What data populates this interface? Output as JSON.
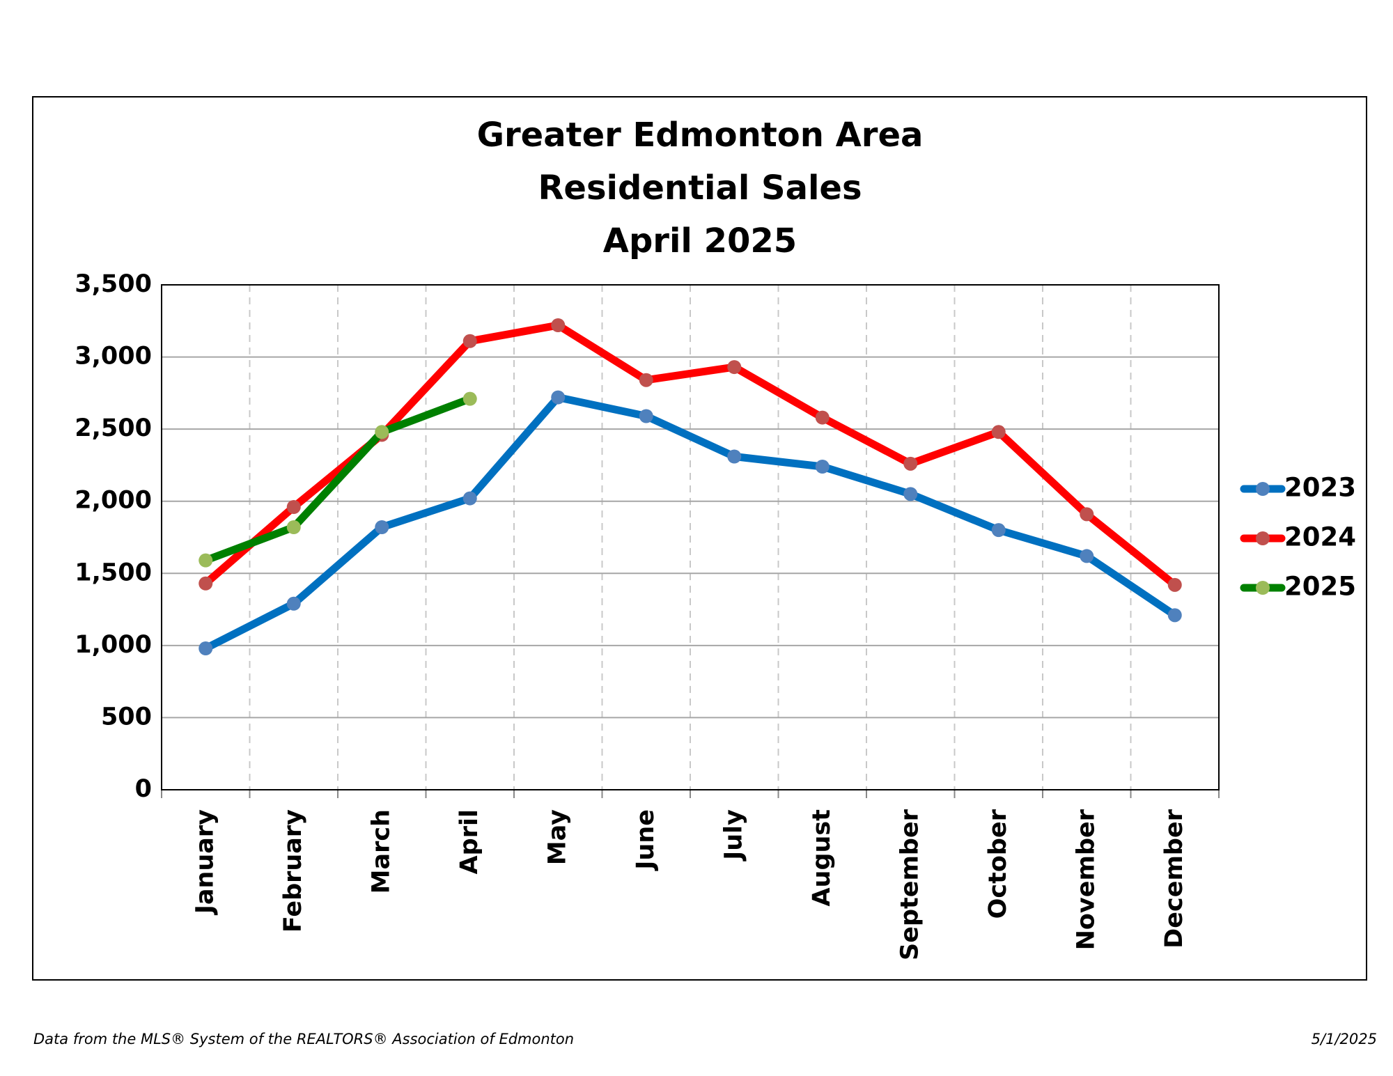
{
  "chart_data": {
    "type": "line",
    "title": [
      "Greater Edmonton Area",
      "Residential Sales",
      "April 2025"
    ],
    "categories": [
      "January",
      "February",
      "March",
      "April",
      "May",
      "June",
      "July",
      "August",
      "September",
      "October",
      "November",
      "December"
    ],
    "series": [
      {
        "name": "2023",
        "color": "#0070c0",
        "marker_color": "#4f81bd",
        "values": [
          980,
          1290,
          1820,
          2020,
          2720,
          2590,
          2310,
          2240,
          2050,
          1800,
          1620,
          1210
        ]
      },
      {
        "name": "2024",
        "color": "#ff0000",
        "marker_color": "#c0504d",
        "values": [
          1430,
          1960,
          2460,
          3110,
          3220,
          2840,
          2930,
          2580,
          2260,
          2480,
          1910,
          1420
        ]
      },
      {
        "name": "2025",
        "color": "#008000",
        "marker_color": "#9bbb59",
        "values": [
          1590,
          1820,
          2480,
          2710,
          null,
          null,
          null,
          null,
          null,
          null,
          null,
          null
        ]
      }
    ],
    "ylim": [
      0,
      3500
    ],
    "yticks": [
      0,
      500,
      {
        "value": 1000,
        "label": "1,000"
      },
      {
        "value": 1500,
        "label": "1,500"
      },
      {
        "value": 2000,
        "label": "2,000"
      },
      {
        "value": 2500,
        "label": "2,500"
      },
      {
        "value": 3000,
        "label": "3,000"
      },
      {
        "value": 3500,
        "label": "3,500"
      }
    ],
    "grid": true,
    "legend": "right",
    "source": "Data from the MLS® System of the REALTORS® Association of Edmonton",
    "date": "5/1/2025"
  }
}
